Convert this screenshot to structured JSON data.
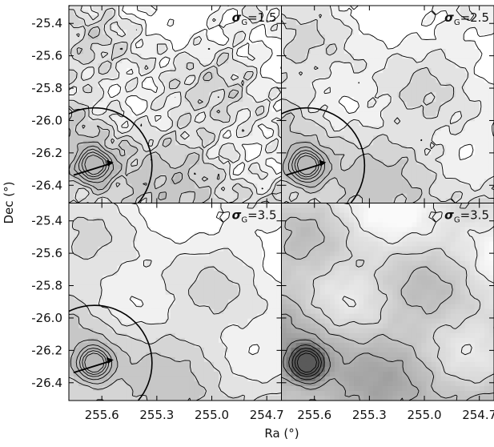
{
  "chart_data": {
    "type": "contour",
    "xlabel": "Ra (°)",
    "ylabel": "Dec (°)",
    "xlim": [
      255.78,
      254.62
    ],
    "ylim": [
      -25.29,
      -26.51
    ],
    "xticks": [
      255.6,
      255.3,
      {
        "value": 255,
        "label": "255.0"
      },
      254.7
    ],
    "yticks": [
      -25.4,
      -25.6,
      -25.8,
      {
        "value": -26,
        "label": "-26.0"
      },
      -26.2,
      -26.4
    ],
    "panels": [
      {
        "label": [
          "σ",
          "G",
          "=1.5"
        ]
      },
      {
        "label": [
          "σ",
          "G",
          "=2.5"
        ]
      },
      {
        "label": [
          "σ",
          "G",
          "=3.5"
        ]
      },
      {
        "label": [
          "σ",
          "G",
          "=3.5"
        ]
      }
    ]
  }
}
